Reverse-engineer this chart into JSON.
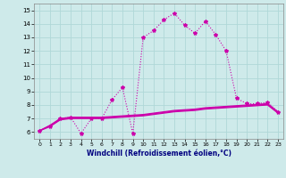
{
  "xlabel": "Windchill (Refroidissement éolien,°C)",
  "bg_color": "#ceeaea",
  "grid_color": "#b0d8d8",
  "line_color": "#cc00aa",
  "xlim": [
    -0.5,
    23.5
  ],
  "ylim": [
    5.5,
    15.5
  ],
  "xticks": [
    0,
    1,
    2,
    3,
    4,
    5,
    6,
    7,
    8,
    9,
    10,
    11,
    12,
    13,
    14,
    15,
    16,
    17,
    18,
    19,
    20,
    21,
    22,
    23
  ],
  "yticks": [
    6,
    7,
    8,
    9,
    10,
    11,
    12,
    13,
    14,
    15
  ],
  "series1_x": [
    0,
    1,
    2,
    3,
    4,
    5,
    6,
    7,
    8,
    9,
    10,
    11,
    12,
    13,
    14,
    15,
    16,
    17,
    18,
    19,
    20,
    21,
    22,
    23
  ],
  "series1_y": [
    6.1,
    6.4,
    7.0,
    7.1,
    5.9,
    7.0,
    7.0,
    8.4,
    9.3,
    5.9,
    13.0,
    13.5,
    14.3,
    14.8,
    13.9,
    13.3,
    14.2,
    13.2,
    12.0,
    8.5,
    8.1,
    8.1,
    8.2,
    7.5
  ],
  "series2_x": [
    0,
    1,
    2,
    3,
    4,
    5,
    6,
    7,
    8,
    9,
    10,
    11,
    12,
    13,
    14,
    15,
    16,
    17,
    18,
    19,
    20,
    21,
    22,
    23
  ],
  "series2_y": [
    6.1,
    6.5,
    7.0,
    7.1,
    7.1,
    7.1,
    7.1,
    7.15,
    7.2,
    7.25,
    7.3,
    7.4,
    7.5,
    7.6,
    7.65,
    7.7,
    7.8,
    7.85,
    7.9,
    7.95,
    8.0,
    8.05,
    8.1,
    7.5
  ],
  "series3_x": [
    0,
    1,
    2,
    3,
    4,
    5,
    6,
    7,
    8,
    9,
    10,
    11,
    12,
    13,
    14,
    15,
    16,
    17,
    18,
    19,
    20,
    21,
    22,
    23
  ],
  "series3_y": [
    6.1,
    6.45,
    6.95,
    7.05,
    7.05,
    7.05,
    7.05,
    7.1,
    7.15,
    7.2,
    7.25,
    7.35,
    7.45,
    7.55,
    7.6,
    7.65,
    7.75,
    7.8,
    7.85,
    7.9,
    7.95,
    8.0,
    8.05,
    7.45
  ],
  "series4_x": [
    0,
    1,
    2,
    3,
    4,
    5,
    6,
    7,
    8,
    9,
    10,
    11,
    12,
    13,
    14,
    15,
    16,
    17,
    18,
    19,
    20,
    21,
    22,
    23
  ],
  "series4_y": [
    6.1,
    6.4,
    6.9,
    7.0,
    7.0,
    7.0,
    7.0,
    7.05,
    7.1,
    7.15,
    7.2,
    7.3,
    7.4,
    7.5,
    7.55,
    7.6,
    7.7,
    7.75,
    7.8,
    7.85,
    7.9,
    7.95,
    8.0,
    7.4
  ]
}
